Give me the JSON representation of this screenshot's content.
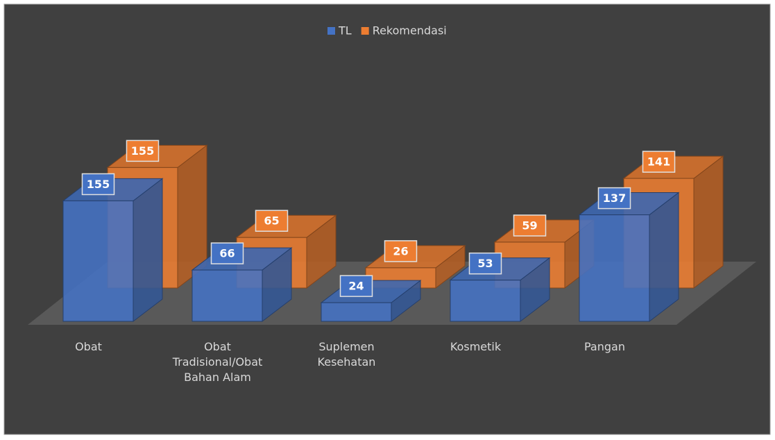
{
  "chart_data": {
    "type": "bar3d",
    "categories": [
      "Obat",
      "Obat Tradisional/Obat Bahan Alam",
      "Suplemen Kesehatan",
      "Kosmetik",
      "Pangan"
    ],
    "series": [
      {
        "name": "TL",
        "color": "#4472c4",
        "values": [
          155,
          66,
          24,
          53,
          137
        ]
      },
      {
        "name": "Rekomendasi",
        "color": "#ed7d31",
        "values": [
          155,
          65,
          26,
          59,
          141
        ]
      }
    ],
    "legend": "top"
  }
}
